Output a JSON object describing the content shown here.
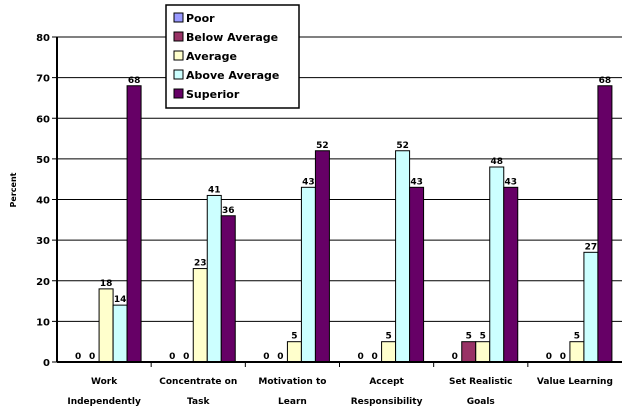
{
  "chart_data": {
    "type": "bar",
    "title": "",
    "xlabel": "",
    "ylabel": "Percent",
    "ylim": [
      0,
      80
    ],
    "yticks": [
      0,
      10,
      20,
      30,
      40,
      50,
      60,
      70,
      80
    ],
    "grid": true,
    "legend_position": "top-center",
    "categories": [
      [
        "Work",
        "Independently"
      ],
      [
        "Concentrate on",
        "Task"
      ],
      [
        "Motivation to",
        "Learn"
      ],
      [
        "Accept",
        "Responsibility"
      ],
      [
        "Set Realistic",
        "Goals"
      ],
      [
        "Value Learning"
      ]
    ],
    "series": [
      {
        "name": "Poor",
        "color": "#9999ff",
        "values": [
          0,
          0,
          0,
          0,
          0,
          0
        ],
        "labels": [
          "0",
          "0",
          "0",
          "0",
          "0",
          "0"
        ]
      },
      {
        "name": "Below Average",
        "color": "#993366",
        "values": [
          0,
          0,
          0,
          0,
          5,
          0
        ],
        "labels": [
          "0",
          "0",
          "0",
          "0",
          "5",
          "0"
        ]
      },
      {
        "name": "Average",
        "color": "#ffffcc",
        "values": [
          18,
          23,
          5,
          5,
          5,
          5
        ],
        "labels": [
          "18",
          "23",
          "5",
          "5",
          "5",
          "5"
        ]
      },
      {
        "name": "Above Average",
        "color": "#ccffff",
        "values": [
          14,
          41,
          43,
          52,
          48,
          27
        ],
        "labels": [
          "14",
          "41",
          "43",
          "52",
          "48",
          "27"
        ]
      },
      {
        "name": "Superior",
        "color": "#660066",
        "values": [
          68,
          36,
          52,
          43,
          43,
          68
        ],
        "labels": [
          "68",
          "36",
          "52",
          "43",
          "43",
          "68"
        ]
      }
    ]
  }
}
